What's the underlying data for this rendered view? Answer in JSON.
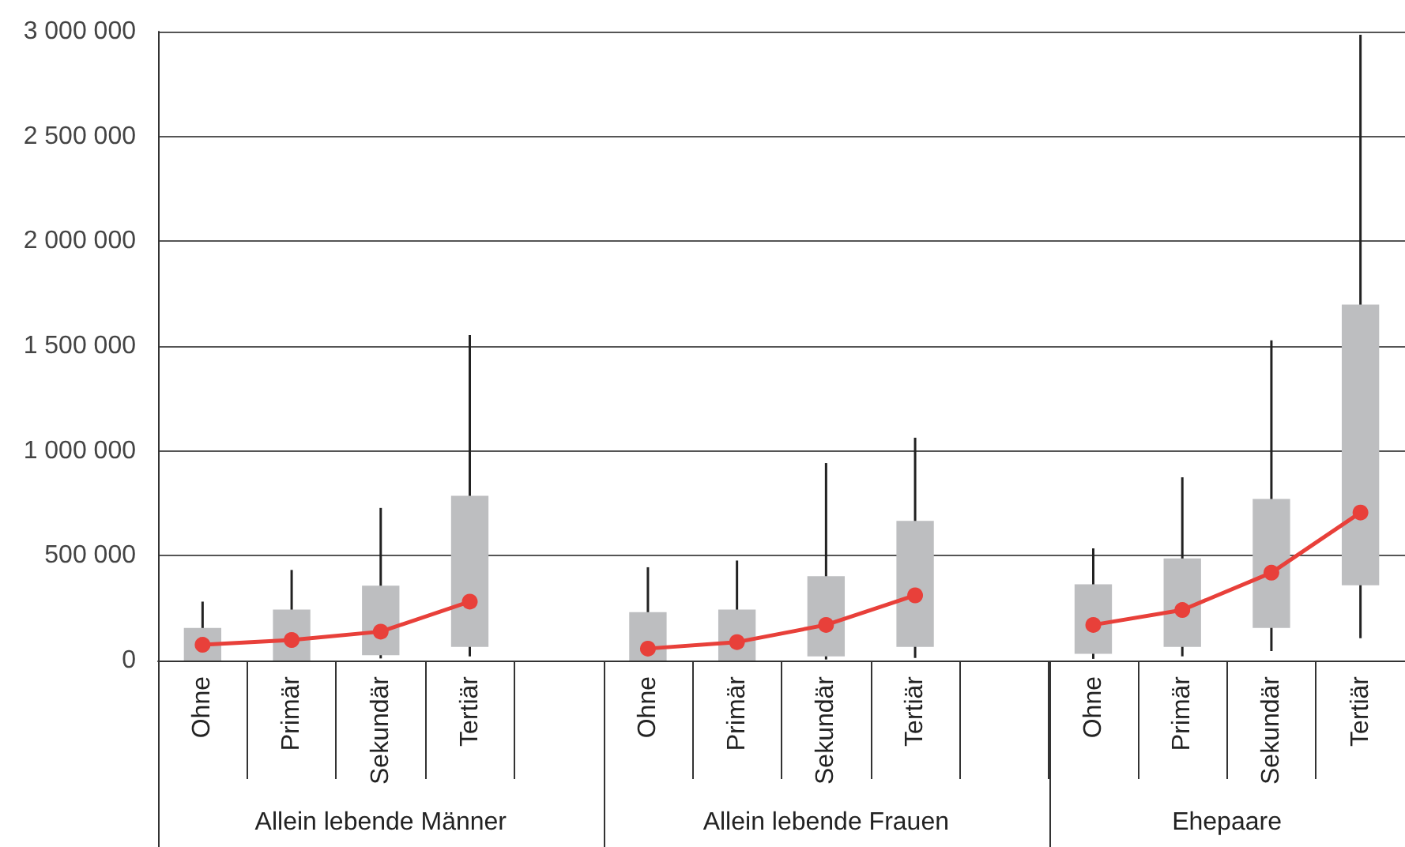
{
  "chart_data": {
    "type": "box",
    "categories": [
      "Ohne",
      "Primär",
      "Sekundär",
      "Tertiär",
      null,
      "Ohne",
      "Primär",
      "Sekundär",
      "Tertiär",
      null,
      "Ohne",
      "Primär",
      "Sekundär",
      "Tertiär"
    ],
    "series": [
      {
        "type": "box",
        "color": "#bdbec0",
        "boxes": [
          {
            "low": 0,
            "q1": 0,
            "q3": 155000,
            "high": 281000
          },
          {
            "low": 0,
            "q1": 0,
            "q3": 243000,
            "high": 432000
          },
          {
            "low": 10000,
            "q1": 25000,
            "q3": 357000,
            "high": 728000
          },
          {
            "low": 20000,
            "q1": 65000,
            "q3": 786000,
            "high": 1553000
          },
          null,
          {
            "low": 0,
            "q1": 0,
            "q3": 231000,
            "high": 445000
          },
          {
            "low": 0,
            "q1": 0,
            "q3": 243000,
            "high": 477000
          },
          {
            "low": 5000,
            "q1": 20000,
            "q3": 402000,
            "high": 942000
          },
          {
            "low": 12000,
            "q1": 65000,
            "q3": 666000,
            "high": 1063000
          },
          null,
          {
            "low": 8000,
            "q1": 32000,
            "q3": 364000,
            "high": 535000
          },
          {
            "low": 20000,
            "q1": 65000,
            "q3": 487000,
            "high": 874000
          },
          {
            "low": 45000,
            "q1": 155000,
            "q3": 771000,
            "high": 1527000
          },
          {
            "low": 106000,
            "q1": 359000,
            "q3": 1698000,
            "high": 2985000
          }
        ]
      },
      {
        "type": "line",
        "color": "#e8403a",
        "values": [
          75000,
          98000,
          138000,
          281000,
          null,
          57000,
          88000,
          170000,
          311000,
          null,
          170000,
          241000,
          419000,
          706000
        ]
      }
    ],
    "ylim": [
      0,
      3000000
    ],
    "yticks": [
      {
        "value": 0,
        "label": "0"
      },
      {
        "value": 500000,
        "label": "500 000"
      },
      {
        "value": 1000000,
        "label": "1 000 000"
      },
      {
        "value": 1500000,
        "label": "1 500 000"
      },
      {
        "value": 2000000,
        "label": "2 000 000"
      },
      {
        "value": 2500000,
        "label": "2 500 000"
      },
      {
        "value": 3000000,
        "label": "3 000 000"
      }
    ],
    "grid": "y",
    "marker": "circle",
    "annotations": [
      "Allein lebende Männer",
      "Allein lebende Frauen",
      "Ehepaare"
    ]
  }
}
